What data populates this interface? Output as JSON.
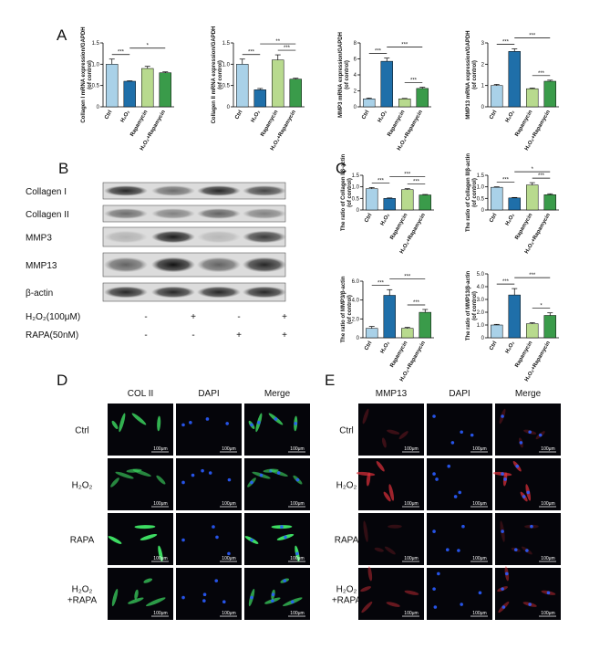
{
  "panel_labels": [
    "A",
    "B",
    "C",
    "D",
    "E"
  ],
  "chart_data": [
    {
      "type": "bar",
      "y_label": [
        "Collagen I mRNA expression/GAPDH",
        "(of control)"
      ],
      "categories": [
        "Ctrl",
        "H₂O₂",
        "Rapamycin",
        "H₂O₂+Rapamycin"
      ],
      "colors": [
        "#a9d1e8",
        "#1f6fa9",
        "#b8da8e",
        "#3a9b4a"
      ],
      "values": [
        1.0,
        0.6,
        0.9,
        0.8
      ],
      "errors": [
        0.12,
        0.01,
        0.05,
        0.02
      ],
      "ylim": [
        0,
        1.5
      ],
      "yticks": [
        0,
        0.5,
        {
          "value": 1,
          "label": "1.0"
        },
        1.5
      ],
      "significance": [
        {
          "pair": [
            0,
            1
          ],
          "label": "***"
        },
        {
          "pair": [
            1,
            3
          ],
          "label": "*"
        }
      ]
    },
    {
      "type": "bar",
      "y_label": [
        "Collagen II mRNA expression/GAPDH",
        "(of control)"
      ],
      "categories": [
        "Ctrl",
        "H₂O₂",
        "Rapamycin",
        "H₂O₂+Rapamycin"
      ],
      "colors": [
        "#a9d1e8",
        "#1f6fa9",
        "#b8da8e",
        "#3a9b4a"
      ],
      "values": [
        1.0,
        0.4,
        1.1,
        0.65
      ],
      "errors": [
        0.12,
        0.03,
        0.12,
        0.02
      ],
      "ylim": [
        0,
        1.5
      ],
      "yticks": [
        0,
        0.5,
        {
          "value": 1,
          "label": "1.0"
        },
        1.5
      ],
      "significance": [
        {
          "pair": [
            0,
            1
          ],
          "label": "***"
        },
        {
          "pair": [
            2,
            3
          ],
          "label": "***"
        },
        {
          "pair": [
            1,
            3
          ],
          "label": "**"
        }
      ]
    },
    {
      "type": "bar",
      "y_label": [
        "MMP3 mRNA expression/GAPDH",
        "(of control)"
      ],
      "categories": [
        "Ctrl",
        "H₂O₂",
        "Rapamycin",
        "H₂O₂+Rapamycin"
      ],
      "colors": [
        "#a9d1e8",
        "#1f6fa9",
        "#b8da8e",
        "#3a9b4a"
      ],
      "values": [
        1.0,
        5.7,
        1.0,
        2.3
      ],
      "errors": [
        0.1,
        0.4,
        0.05,
        0.15
      ],
      "ylim": [
        0,
        8
      ],
      "yticks": [
        0,
        2,
        4,
        6,
        8
      ],
      "significance": [
        {
          "pair": [
            0,
            1
          ],
          "label": "***"
        },
        {
          "pair": [
            2,
            3
          ],
          "label": "***"
        },
        {
          "pair": [
            1,
            3
          ],
          "label": "***"
        }
      ]
    },
    {
      "type": "bar",
      "y_label": [
        "MMP13 mRNA expression/GAPDH",
        "(of control)"
      ],
      "categories": [
        "Ctrl",
        "H₂O₂",
        "Rapamycin",
        "H₂O₂+Rapamycin"
      ],
      "colors": [
        "#a9d1e8",
        "#1f6fa9",
        "#b8da8e",
        "#3a9b4a"
      ],
      "values": [
        1.0,
        2.6,
        0.85,
        1.2
      ],
      "errors": [
        0.05,
        0.12,
        0.03,
        0.05
      ],
      "ylim": [
        0,
        3
      ],
      "yticks": [
        0,
        1,
        2,
        3
      ],
      "significance": [
        {
          "pair": [
            0,
            1
          ],
          "label": "***"
        },
        {
          "pair": [
            2,
            3
          ],
          "label": "***"
        },
        {
          "pair": [
            1,
            3
          ],
          "label": "***"
        }
      ]
    },
    {
      "type": "bar",
      "y_label": [
        "The ratio of Collagen I/β-actin",
        "(of control)"
      ],
      "categories": [
        "Ctrl",
        "H₂O₂",
        "Rapamycin",
        "H₂O₂+Rapamycin"
      ],
      "colors": [
        "#a9d1e8",
        "#1f6fa9",
        "#b8da8e",
        "#3a9b4a"
      ],
      "values": [
        0.92,
        0.5,
        0.88,
        0.65
      ],
      "errors": [
        0.05,
        0.02,
        0.04,
        0.02
      ],
      "ylim": [
        0,
        1.5
      ],
      "yticks": [
        0,
        0.5,
        {
          "value": 1,
          "label": "1.0"
        },
        1.5
      ],
      "significance": [
        {
          "pair": [
            0,
            1
          ],
          "label": "***"
        },
        {
          "pair": [
            2,
            3
          ],
          "label": "***"
        },
        {
          "pair": [
            1,
            3
          ],
          "label": "***"
        }
      ]
    },
    {
      "type": "bar",
      "y_label": [
        "The ratio of Collagen II/β-actin",
        "(of control)"
      ],
      "categories": [
        "Ctrl",
        "H₂O₂",
        "Rapamycin",
        "H₂O₂+Rapamycin"
      ],
      "colors": [
        "#a9d1e8",
        "#1f6fa9",
        "#b8da8e",
        "#3a9b4a"
      ],
      "values": [
        0.98,
        0.52,
        1.08,
        0.66
      ],
      "errors": [
        0.02,
        0.02,
        0.1,
        0.04
      ],
      "ylim": [
        0,
        1.5
      ],
      "yticks": [
        0,
        0.5,
        {
          "value": 1,
          "label": "1.0"
        },
        1.5
      ],
      "significance": [
        {
          "pair": [
            0,
            1
          ],
          "label": "***"
        },
        {
          "pair": [
            2,
            3
          ],
          "label": "***"
        },
        {
          "pair": [
            1,
            3
          ],
          "label": "*"
        }
      ]
    },
    {
      "type": "bar",
      "y_label": [
        "The ratio of MMP3/β-actin",
        "(of control)"
      ],
      "categories": [
        "Ctrl",
        "H₂O₂",
        "Rapamycin",
        "H₂O₂+Rapamycin"
      ],
      "colors": [
        "#a9d1e8",
        "#1f6fa9",
        "#b8da8e",
        "#3a9b4a"
      ],
      "values": [
        1.0,
        4.5,
        1.0,
        2.7
      ],
      "errors": [
        0.2,
        0.6,
        0.1,
        0.3
      ],
      "ylim": [
        0,
        6
      ],
      "yticks": [
        0,
        {
          "value": 2,
          "label": "2.0"
        },
        {
          "value": 4,
          "label": "4.0"
        },
        {
          "value": 6,
          "label": "6.0"
        }
      ],
      "significance": [
        {
          "pair": [
            0,
            1
          ],
          "label": "***"
        },
        {
          "pair": [
            2,
            3
          ],
          "label": "***"
        },
        {
          "pair": [
            1,
            3
          ],
          "label": "***"
        }
      ]
    },
    {
      "type": "bar",
      "y_label": [
        "The ratio of MMP13/β-actin",
        "(of control)"
      ],
      "categories": [
        "Ctrl",
        "H₂O₂",
        "Rapamycin",
        "H₂O₂+Rapamycin"
      ],
      "colors": [
        "#a9d1e8",
        "#1f6fa9",
        "#b8da8e",
        "#3a9b4a"
      ],
      "values": [
        1.0,
        3.35,
        1.1,
        1.75
      ],
      "errors": [
        0.05,
        0.5,
        0.08,
        0.2
      ],
      "ylim": [
        0,
        5
      ],
      "yticks": [
        0,
        {
          "value": 1,
          "label": "1.0"
        },
        {
          "value": 2,
          "label": "2.0"
        },
        {
          "value": 3,
          "label": "3.0"
        },
        {
          "value": 4,
          "label": "4.0"
        },
        {
          "value": 5,
          "label": "5.0"
        }
      ],
      "significance": [
        {
          "pair": [
            0,
            1
          ],
          "label": "***"
        },
        {
          "pair": [
            2,
            3
          ],
          "label": "*"
        },
        {
          "pair": [
            1,
            3
          ],
          "label": "***"
        }
      ]
    }
  ],
  "western_blot": {
    "proteins": [
      "Collagen I",
      "Collagen II",
      "MMP3",
      "MMP13",
      "β-actin"
    ],
    "treatments": [
      {
        "name": "H₂O₂(100μM)",
        "signs": [
          "-",
          "+",
          "-",
          "+"
        ]
      },
      {
        "name": "RAPA(50nM)",
        "signs": [
          "-",
          "-",
          "+",
          "+"
        ]
      }
    ]
  },
  "microscopy": [
    {
      "channels": [
        "COL II",
        "DAPI",
        "Merge"
      ],
      "conditions": [
        [
          "Ctrl"
        ],
        [
          "H₂O₂"
        ],
        [
          "RAPA"
        ],
        [
          "H₂O₂",
          "+RAPA"
        ]
      ]
    },
    {
      "channels": [
        "MMP13",
        "DAPI",
        "Merge"
      ],
      "conditions": [
        [
          "Ctrl"
        ],
        [
          "H₂O₂"
        ],
        [
          "RAPA"
        ],
        [
          "H₂O₂",
          "+RAPA"
        ]
      ]
    }
  ],
  "scale_bar": "100μm"
}
